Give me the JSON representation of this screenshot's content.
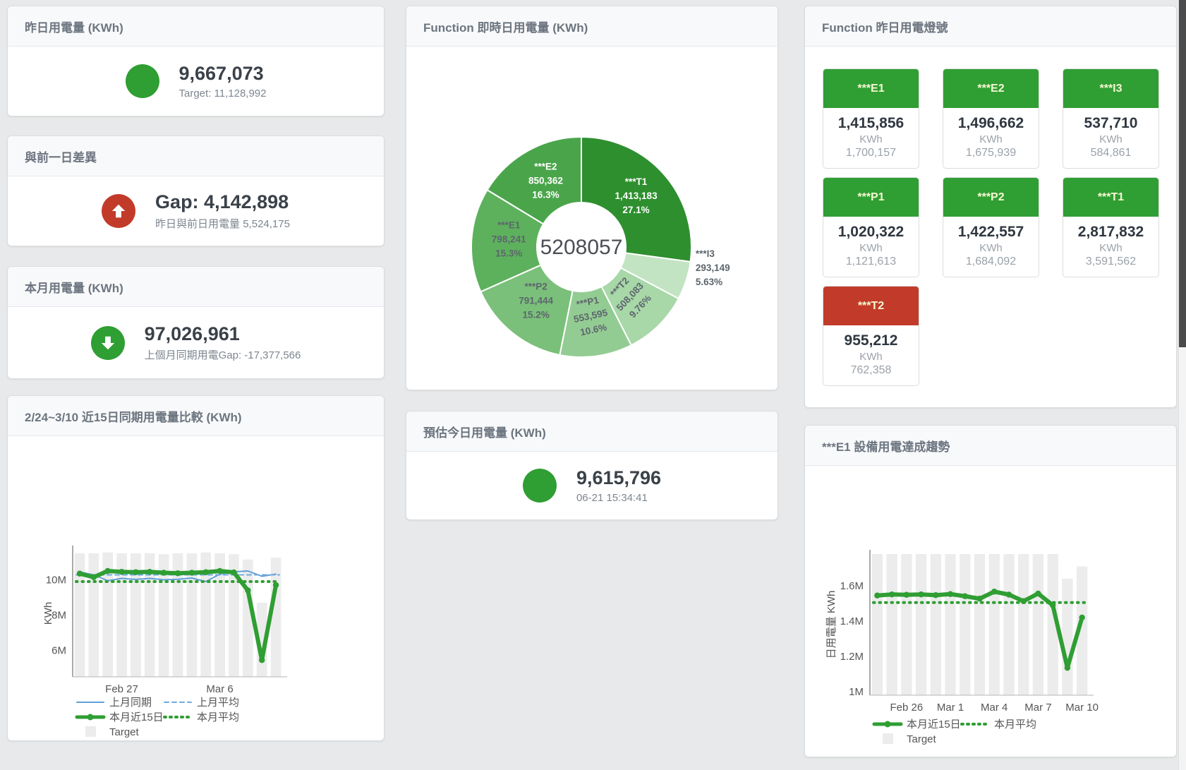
{
  "colors": {
    "green": "#2f9e33",
    "red": "#c23b2a",
    "bar_gray": "#ececec",
    "blue": "#5f9fd8",
    "card_title": "#6c7580",
    "value_dark": "#3a4149",
    "muted": "#7d868f"
  },
  "cards": {
    "yesterday": {
      "title": "昨日用電量 (KWh)",
      "value": "9,667,073",
      "subtitle": "Target: 11,128,992",
      "indicator": "green-circle"
    },
    "diff": {
      "title": "與前一日差異",
      "value": "Gap: 4,142,898",
      "subtitle": "昨日與前日用電量 5,524,175",
      "indicator": "red-circle-up-arrow"
    },
    "month": {
      "title": "本月用電量 (KWh)",
      "value": "97,026,961",
      "subtitle": "上個月同期用電Gap: -17,377,566",
      "indicator": "green-circle-down-arrow"
    },
    "estimate": {
      "title": "預估今日用電量 (KWh)",
      "value": "9,615,796",
      "subtitle": "06-21 15:34:41",
      "indicator": "green-circle"
    },
    "lights": {
      "title": "Function 昨日用電燈號",
      "unit": "KWh",
      "tiles": [
        {
          "name": "***E1",
          "value": "1,415,856",
          "target": "1,700,157",
          "status": "green"
        },
        {
          "name": "***E2",
          "value": "1,496,662",
          "target": "1,675,939",
          "status": "green"
        },
        {
          "name": "***I3",
          "value": "537,710",
          "target": "584,861",
          "status": "green"
        },
        {
          "name": "***P1",
          "value": "1,020,322",
          "target": "1,121,613",
          "status": "green"
        },
        {
          "name": "***P2",
          "value": "1,422,557",
          "target": "1,684,092",
          "status": "green"
        },
        {
          "name": "***T1",
          "value": "2,817,832",
          "target": "3,591,562",
          "status": "green"
        },
        {
          "name": "***T2",
          "value": "955,212",
          "target": "762,358",
          "status": "red"
        }
      ]
    }
  },
  "chart_data": [
    {
      "id": "donut",
      "type": "pie",
      "title": "Function 即時日用電量 (KWh)",
      "center_label": "5208057",
      "slices": [
        {
          "name": "***T1",
          "value": 1413183,
          "display": "1,413,183",
          "pct": "27.1%",
          "color": "#2e8f2e",
          "label_color": "#ffffff",
          "label_rotate": 0,
          "label_outside": false
        },
        {
          "name": "***I3",
          "value": 293149,
          "display": "293,149",
          "pct": "5.63%",
          "color": "#c3e4c3",
          "label_color": "#5d666d",
          "label_rotate": 0,
          "label_outside": true
        },
        {
          "name": "***T2",
          "value": 508083,
          "display": "508,083",
          "pct": "9.76%",
          "color": "#a8d7a8",
          "label_color": "#5d666d",
          "label_rotate": -47,
          "label_outside": false
        },
        {
          "name": "***P1",
          "value": 553595,
          "display": "553,595",
          "pct": "10.6%",
          "color": "#93cc93",
          "label_color": "#5d666d",
          "label_rotate": -12,
          "label_outside": false
        },
        {
          "name": "***P2",
          "value": 791444,
          "display": "791,444",
          "pct": "15.2%",
          "color": "#7ac07a",
          "label_color": "#5d666d",
          "label_rotate": 0,
          "label_outside": false
        },
        {
          "name": "***E1",
          "value": 798241,
          "display": "798,241",
          "pct": "15.3%",
          "color": "#5db15d",
          "label_color": "#5d666d",
          "label_rotate": 0,
          "label_outside": false
        },
        {
          "name": "***E2",
          "value": 850362,
          "display": "850,362",
          "pct": "16.3%",
          "color": "#4aa54a",
          "label_color": "#ffffff",
          "label_rotate": 0,
          "label_outside": false
        }
      ]
    },
    {
      "id": "compare",
      "type": "bar+line",
      "title": "2/24~3/10 近15日同期用電量比較 (KWh)",
      "ylabel": "KWh",
      "ylim": [
        4500000,
        11700000
      ],
      "yticks": [
        {
          "value": 6000000,
          "label": "6M"
        },
        {
          "value": 8000000,
          "label": "8M"
        },
        {
          "value": 10000000,
          "label": "10M"
        }
      ],
      "xticks": [
        {
          "index": 3,
          "label": "Feb 27"
        },
        {
          "index": 10,
          "label": "Mar 6"
        }
      ],
      "categories": [
        "2/24",
        "2/25",
        "2/26",
        "2/27",
        "2/28",
        "3/1",
        "3/2",
        "3/3",
        "3/4",
        "3/5",
        "3/6",
        "3/7",
        "3/8",
        "3/9",
        "3/10"
      ],
      "series": [
        {
          "name": "Target",
          "type": "bar",
          "color": "#ececec",
          "values": [
            11500000,
            11500000,
            11550000,
            11500000,
            11500000,
            11500000,
            11450000,
            11500000,
            11500000,
            11550000,
            11500000,
            11450000,
            11150000,
            8700000,
            11250000
          ]
        },
        {
          "name": "上月同期",
          "type": "line",
          "dash": "solid",
          "width": 2,
          "color": "#5f9fd8",
          "values": [
            10450000,
            10280000,
            9950000,
            10080000,
            10020000,
            10080000,
            10000000,
            10030000,
            10100000,
            9900000,
            10320000,
            10450000,
            10500000,
            10200000,
            10320000
          ]
        },
        {
          "name": "上月平均",
          "type": "line",
          "dash": "dashed",
          "width": 2,
          "color": "#6faade",
          "constant": 10280000
        },
        {
          "name": "本月近15日",
          "type": "line",
          "dash": "solid",
          "width": 6,
          "color": "#2f9e33",
          "markers": true,
          "values": [
            10350000,
            10150000,
            10500000,
            10450000,
            10430000,
            10450000,
            10400000,
            10370000,
            10400000,
            10430000,
            10500000,
            10420000,
            9400000,
            5450000,
            9700000
          ]
        },
        {
          "name": "本月平均",
          "type": "line",
          "dash": "dotted",
          "width": 4,
          "color": "#2f9e33",
          "constant": 9900000
        }
      ],
      "legend": [
        [
          "上月同期",
          "上月平均"
        ],
        [
          "本月近15日",
          "本月平均"
        ],
        [
          "Target"
        ]
      ]
    },
    {
      "id": "trend",
      "type": "bar+line",
      "title": "***E1 設備用電達成趨勢",
      "ylabel": "日用電量 KWh",
      "ylim": [
        980000,
        1780000
      ],
      "yticks": [
        {
          "value": 1000000,
          "label": "1M"
        },
        {
          "value": 1200000,
          "label": "1.2M"
        },
        {
          "value": 1400000,
          "label": "1.4M"
        },
        {
          "value": 1600000,
          "label": "1.6M"
        }
      ],
      "xticks": [
        {
          "index": 2,
          "label": "Feb 26"
        },
        {
          "index": 5,
          "label": "Mar 1"
        },
        {
          "index": 8,
          "label": "Mar 4"
        },
        {
          "index": 11,
          "label": "Mar 7"
        },
        {
          "index": 14,
          "label": "Mar 10"
        }
      ],
      "categories": [
        "2/24",
        "2/25",
        "2/26",
        "2/27",
        "2/28",
        "3/1",
        "3/2",
        "3/3",
        "3/4",
        "3/5",
        "3/6",
        "3/7",
        "3/8",
        "3/9",
        "3/10"
      ],
      "series": [
        {
          "name": "Target",
          "type": "bar",
          "color": "#ececec",
          "values": [
            1780000,
            1780000,
            1780000,
            1780000,
            1780000,
            1780000,
            1780000,
            1780000,
            1780000,
            1780000,
            1780000,
            1780000,
            1780000,
            1640000,
            1710000
          ]
        },
        {
          "name": "本月近15日",
          "type": "line",
          "dash": "solid",
          "width": 6,
          "color": "#2f9e33",
          "markers": true,
          "values": [
            1545000,
            1551000,
            1549000,
            1551000,
            1547000,
            1553000,
            1541000,
            1527000,
            1567000,
            1550000,
            1513000,
            1556000,
            1490000,
            1135000,
            1420000
          ]
        },
        {
          "name": "本月平均",
          "type": "line",
          "dash": "dotted",
          "width": 4,
          "color": "#2f9e33",
          "constant": 1505000
        }
      ],
      "legend": [
        [
          "本月近15日",
          "本月平均"
        ],
        [
          "Target"
        ]
      ]
    }
  ]
}
